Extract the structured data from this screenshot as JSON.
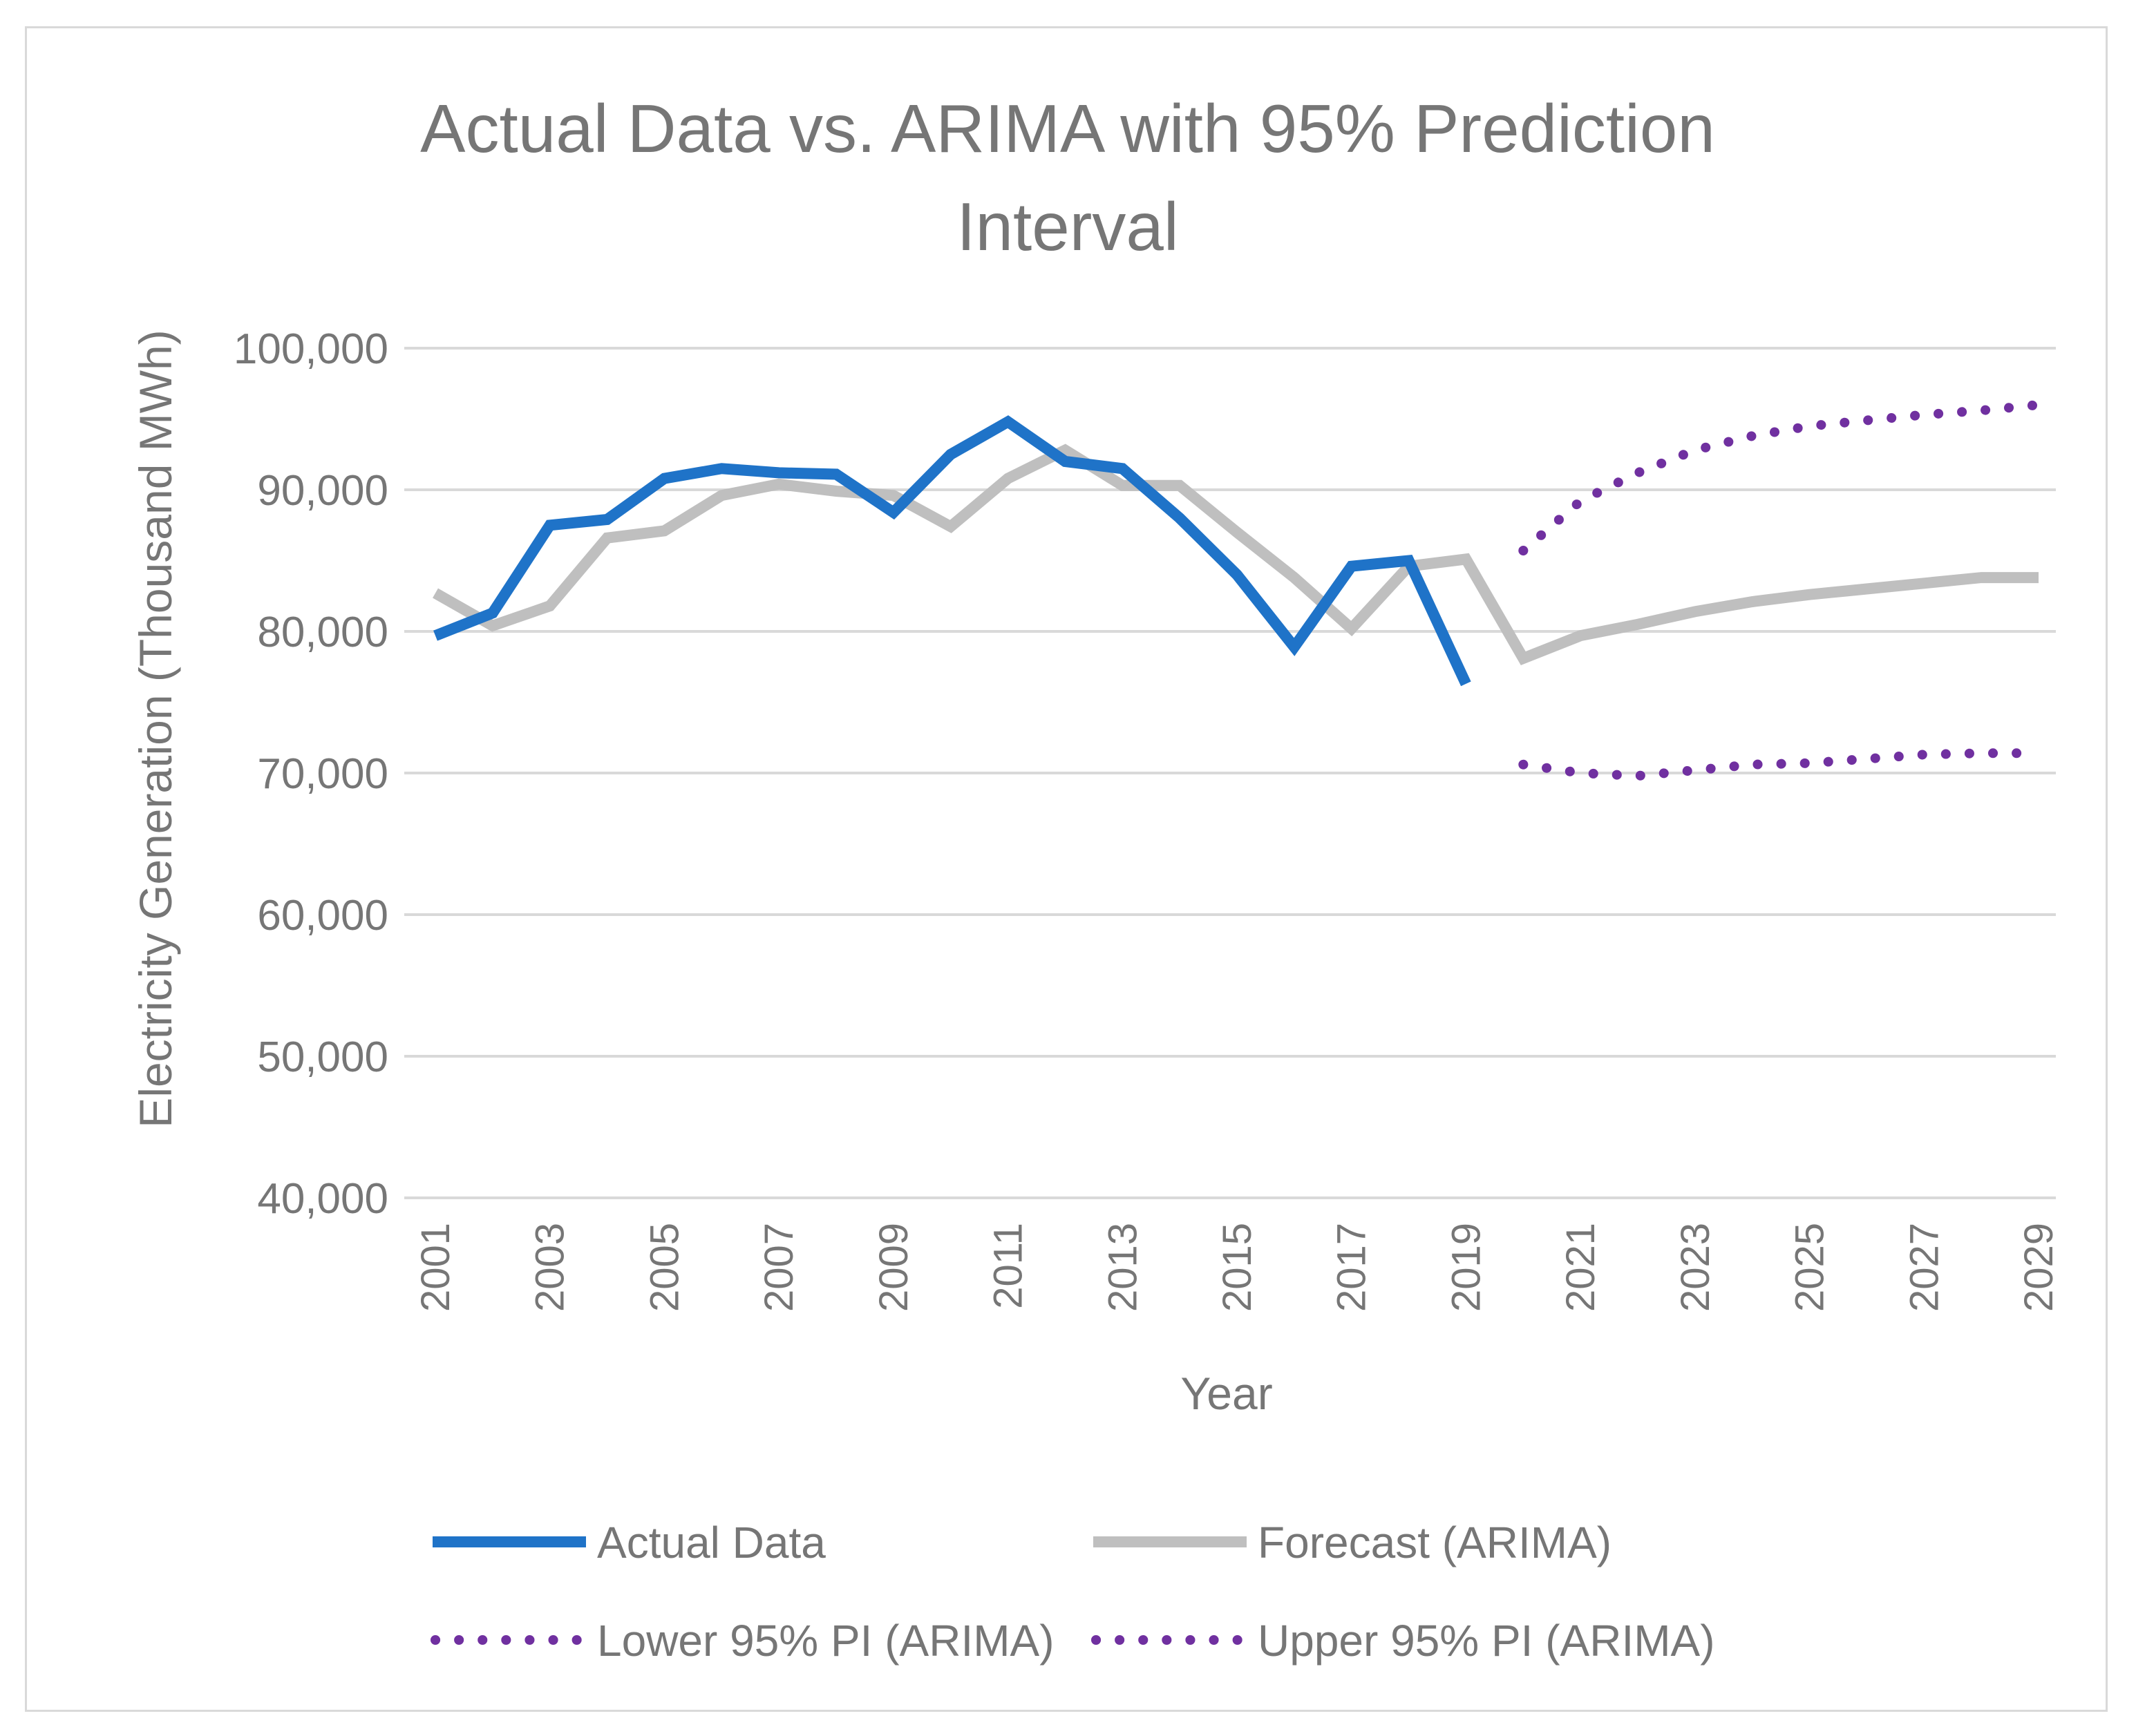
{
  "chart_data": {
    "type": "line",
    "title": "Actual Data vs. ARIMA with 95% Prediction Interval",
    "title_lines": [
      "Actual Data vs. ARIMA with 95% Prediction",
      "Interval"
    ],
    "xlabel": "Year",
    "ylabel": "Electricity Generation (Thousand MWh)",
    "ylim": [
      40000,
      100000
    ],
    "yticks": [
      "40,000",
      "50,000",
      "60,000",
      "70,000",
      "80,000",
      "90,000",
      "100,000"
    ],
    "ytick_values": [
      40000,
      50000,
      60000,
      70000,
      80000,
      90000,
      100000
    ],
    "x_start": 2001,
    "x_end": 2029,
    "xticks": [
      "2001",
      "2003",
      "2005",
      "2007",
      "2009",
      "2011",
      "2013",
      "2015",
      "2017",
      "2019",
      "2021",
      "2023",
      "2025",
      "2027",
      "2029"
    ],
    "grid": true,
    "legend_position": "bottom",
    "series": [
      {
        "name": "Actual Data",
        "color": "#1f73c8",
        "style": "solid",
        "x": [
          2001,
          2002,
          2003,
          2004,
          2005,
          2006,
          2007,
          2008,
          2009,
          2010,
          2011,
          2012,
          2013,
          2014,
          2015,
          2016,
          2017,
          2018,
          2019
        ],
        "values": [
          79700,
          81300,
          87500,
          87900,
          90800,
          91500,
          91200,
          91100,
          88400,
          92500,
          94800,
          92000,
          91500,
          88000,
          84000,
          78900,
          84600,
          85000,
          76300
        ]
      },
      {
        "name": "Forecast (ARIMA)",
        "color": "#bfbfbf",
        "style": "solid",
        "x": [
          2001,
          2002,
          2003,
          2004,
          2005,
          2006,
          2007,
          2008,
          2009,
          2010,
          2011,
          2012,
          2013,
          2014,
          2015,
          2016,
          2017,
          2018,
          2019,
          2020,
          2021,
          2022,
          2023,
          2024,
          2025,
          2026,
          2027,
          2028,
          2029
        ],
        "values": [
          82700,
          80400,
          81800,
          86600,
          87100,
          89600,
          90400,
          89900,
          89600,
          87400,
          90800,
          92800,
          90300,
          90300,
          87000,
          83800,
          80200,
          84600,
          85100,
          78100,
          79700,
          80500,
          81400,
          82100,
          82600,
          83000,
          83400,
          83800,
          83800
        ]
      },
      {
        "name": "Lower 95% PI (ARIMA)",
        "color": "#7030a0",
        "style": "dotted",
        "x": [
          2020,
          2021,
          2022,
          2023,
          2024,
          2025,
          2026,
          2027,
          2028,
          2029
        ],
        "values": [
          70600,
          70000,
          69800,
          70200,
          70600,
          70700,
          71000,
          71300,
          71400,
          71400
        ]
      },
      {
        "name": "Upper 95% PI (ARIMA)",
        "color": "#7030a0",
        "style": "dotted",
        "x": [
          2020,
          2021,
          2022,
          2023,
          2024,
          2025,
          2026,
          2027,
          2028,
          2029
        ],
        "values": [
          85700,
          89200,
          91200,
          92800,
          93800,
          94500,
          94900,
          95300,
          95600,
          96000
        ]
      }
    ]
  }
}
